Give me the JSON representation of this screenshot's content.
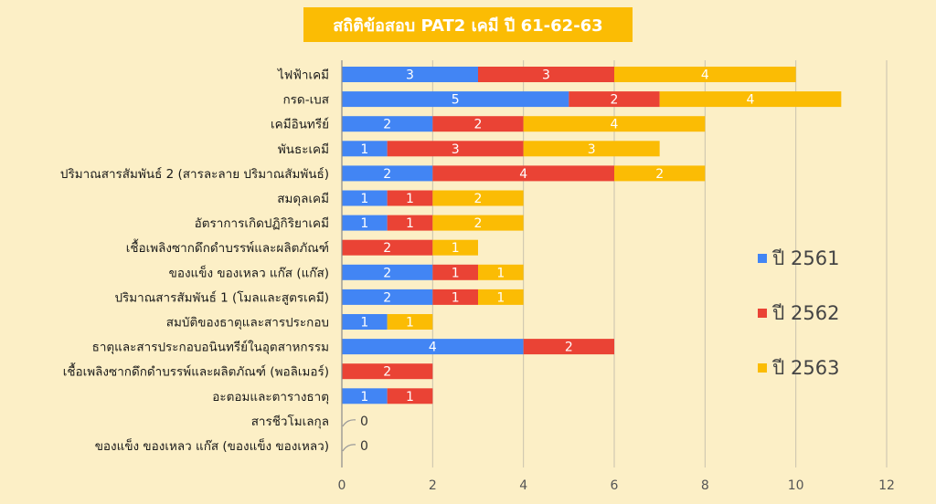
{
  "chart_data": {
    "type": "bar",
    "orientation": "horizontal",
    "stacked": true,
    "title": "สถิติข้อสอบ PAT2 เคมี ปี 61-62-63",
    "xlabel": "",
    "ylabel": "",
    "xlim": [
      0,
      12
    ],
    "xticks": [
      0,
      2,
      4,
      6,
      8,
      10,
      12
    ],
    "grid": true,
    "legend_position": "right",
    "categories": [
      "ไฟฟ้าเคมี",
      "กรด-เบส",
      "เคมีอินทรีย์",
      "พันธะเคมี",
      "ปริมาณสารสัมพันธ์ 2 (สารละลาย ปริมาณสัมพันธ์)",
      "สมดุลเคมี",
      "อัตราการเกิดปฏิกิริยาเคมี",
      "เชื้อเพลิงซากดึกดำบรรพ์และผลิตภัณฑ์",
      "ของแข็ง ของเหลว แก๊ส (แก๊ส)",
      "ปริมาณสารสัมพันธ์ 1 (โมลและสูตรเคมี)",
      "สมบัติของธาตุและสารประกอบ",
      "ธาตุและสารประกอบอนินทรีย์ในอุตสาหกรรม",
      "เชื้อเพลิงซากดึกดำบรรพ์และผลิตภัณฑ์ (พอลิเมอร์)",
      "อะตอมและตารางธาตุ",
      "สารชีวโมเลกุล",
      "ของแข็ง ของเหลว แก๊ส (ของแข็ง ของเหลว)"
    ],
    "series": [
      {
        "name": "ปี 2561",
        "color": "#4285f4",
        "values": [
          3,
          5,
          2,
          1,
          2,
          1,
          1,
          0,
          2,
          2,
          1,
          4,
          0,
          1,
          0,
          0
        ]
      },
      {
        "name": "ปี 2562",
        "color": "#ea4335",
        "values": [
          3,
          2,
          2,
          3,
          4,
          1,
          1,
          2,
          1,
          1,
          0,
          2,
          2,
          1,
          0,
          0
        ]
      },
      {
        "name": "ปี 2563",
        "color": "#fbbc04",
        "values": [
          4,
          4,
          4,
          3,
          2,
          2,
          2,
          1,
          1,
          1,
          1,
          0,
          0,
          0,
          0,
          0
        ]
      }
    ],
    "total_labels": [
      "0",
      "0"
    ]
  }
}
